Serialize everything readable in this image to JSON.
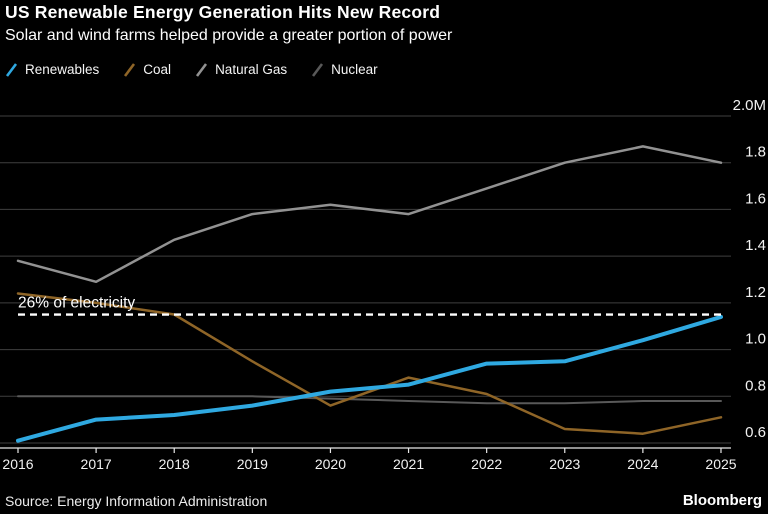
{
  "header": {
    "title": "US Renewable Energy Generation Hits New Record",
    "subtitle": "Solar and wind farms helped provide a greater portion of power"
  },
  "chart_data": {
    "type": "line",
    "x": [
      2016,
      2017,
      2018,
      2019,
      2020,
      2021,
      2022,
      2023,
      2024,
      2025
    ],
    "series": [
      {
        "name": "Renewables",
        "color": "#2FA9E1",
        "width": 4,
        "values": [
          0.61,
          0.7,
          0.72,
          0.76,
          0.82,
          0.85,
          0.94,
          0.95,
          1.04,
          1.14
        ]
      },
      {
        "name": "Coal",
        "color": "#8F6527",
        "width": 2.5,
        "values": [
          1.24,
          1.2,
          1.15,
          0.95,
          0.76,
          0.88,
          0.81,
          0.66,
          0.64,
          0.71
        ]
      },
      {
        "name": "Natural Gas",
        "color": "#929292",
        "width": 2.5,
        "values": [
          1.38,
          1.29,
          1.47,
          1.58,
          1.62,
          1.58,
          1.69,
          1.8,
          1.87,
          1.8
        ]
      },
      {
        "name": "Nuclear",
        "color": "#595959",
        "width": 2,
        "values": [
          0.8,
          0.8,
          0.8,
          0.8,
          0.79,
          0.78,
          0.77,
          0.77,
          0.78,
          0.78
        ]
      }
    ],
    "annotation": {
      "label": "26% of electricity",
      "value": 1.15
    },
    "yticks": [
      0.6,
      0.8,
      1.0,
      1.2,
      1.4,
      1.6,
      1.8,
      2.0
    ],
    "ytick_labels": [
      "0.6",
      "0.8",
      "1.0",
      "1.2",
      "1.4",
      "1.6",
      "1.8",
      "2.0M"
    ],
    "ylim": [
      0.55,
      2.05
    ],
    "grid": "horizontal",
    "legend_position": "top-left",
    "axis_side": "right",
    "grid_color": "#3f3f3f",
    "axis_color": "#e8e8e8",
    "annotation_color": "#ffffff"
  },
  "footer": {
    "source": "Source: Energy Information Administration",
    "brand": "Bloomberg"
  }
}
